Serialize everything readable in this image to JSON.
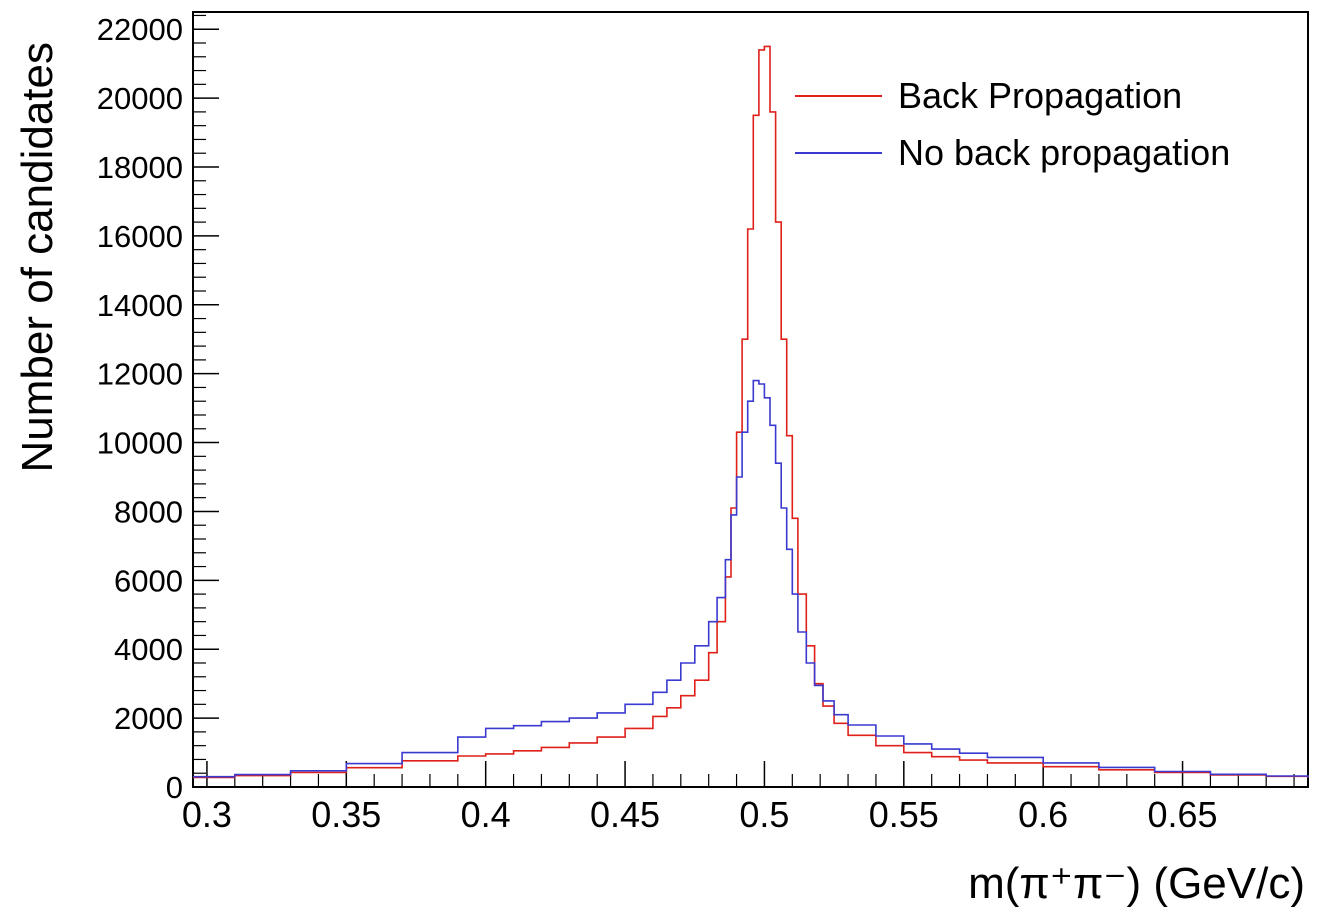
{
  "chart_data": {
    "type": "line",
    "title": "",
    "xlabel": "m(π⁺π⁻) (GeV/c)",
    "ylabel": "Number of candidates",
    "xlim": [
      0.295,
      0.695
    ],
    "ylim": [
      0,
      22500
    ],
    "x_ticks": [
      0.3,
      0.35,
      0.4,
      0.45,
      0.5,
      0.55,
      0.6,
      0.65
    ],
    "x_tick_labels": [
      "0.3",
      "0.35",
      "0.4",
      "0.45",
      "0.5",
      "0.55",
      "0.6",
      "0.65"
    ],
    "y_ticks": [
      0,
      2000,
      4000,
      6000,
      8000,
      10000,
      12000,
      14000,
      16000,
      18000,
      20000,
      22000
    ],
    "y_tick_labels": [
      "0",
      "2000",
      "4000",
      "6000",
      "8000",
      "10000",
      "12000",
      "14000",
      "16000",
      "18000",
      "20000",
      "22000"
    ],
    "grid": false,
    "histogram_step": true,
    "legend_position": "top-right",
    "series": [
      {
        "name": "Back Propagation",
        "color": "#e0201a",
        "x": [
          0.295,
          0.31,
          0.33,
          0.35,
          0.37,
          0.39,
          0.4,
          0.41,
          0.42,
          0.43,
          0.44,
          0.45,
          0.46,
          0.465,
          0.47,
          0.475,
          0.48,
          0.483,
          0.486,
          0.488,
          0.49,
          0.492,
          0.494,
          0.496,
          0.498,
          0.5,
          0.502,
          0.504,
          0.506,
          0.508,
          0.51,
          0.512,
          0.515,
          0.518,
          0.521,
          0.525,
          0.53,
          0.54,
          0.55,
          0.56,
          0.57,
          0.58,
          0.6,
          0.62,
          0.64,
          0.66,
          0.68,
          0.695
        ],
        "values": [
          280,
          330,
          420,
          560,
          760,
          900,
          960,
          1050,
          1150,
          1280,
          1450,
          1700,
          2050,
          2300,
          2650,
          3100,
          3900,
          4800,
          6100,
          8100,
          10300,
          13000,
          16200,
          19500,
          21400,
          21500,
          19600,
          16400,
          13000,
          10200,
          7800,
          5600,
          4100,
          3000,
          2350,
          1850,
          1500,
          1200,
          1000,
          880,
          780,
          700,
          590,
          500,
          420,
          350,
          310,
          270
        ]
      },
      {
        "name": "No back propagation",
        "color": "#3a3ad0",
        "x": [
          0.295,
          0.31,
          0.33,
          0.35,
          0.37,
          0.39,
          0.4,
          0.41,
          0.42,
          0.43,
          0.44,
          0.45,
          0.46,
          0.465,
          0.47,
          0.475,
          0.48,
          0.483,
          0.486,
          0.488,
          0.49,
          0.492,
          0.494,
          0.496,
          0.498,
          0.5,
          0.502,
          0.504,
          0.506,
          0.508,
          0.51,
          0.512,
          0.515,
          0.518,
          0.521,
          0.525,
          0.53,
          0.54,
          0.55,
          0.56,
          0.57,
          0.58,
          0.6,
          0.62,
          0.64,
          0.66,
          0.68,
          0.695
        ],
        "values": [
          300,
          360,
          470,
          680,
          1000,
          1450,
          1700,
          1780,
          1900,
          2000,
          2150,
          2400,
          2750,
          3100,
          3600,
          4100,
          4800,
          5500,
          6600,
          7900,
          9000,
          10300,
          11200,
          11800,
          11700,
          11300,
          10500,
          9400,
          8100,
          6900,
          5600,
          4500,
          3600,
          2950,
          2500,
          2100,
          1800,
          1480,
          1250,
          1100,
          980,
          860,
          700,
          570,
          450,
          370,
          320,
          280
        ]
      }
    ]
  }
}
